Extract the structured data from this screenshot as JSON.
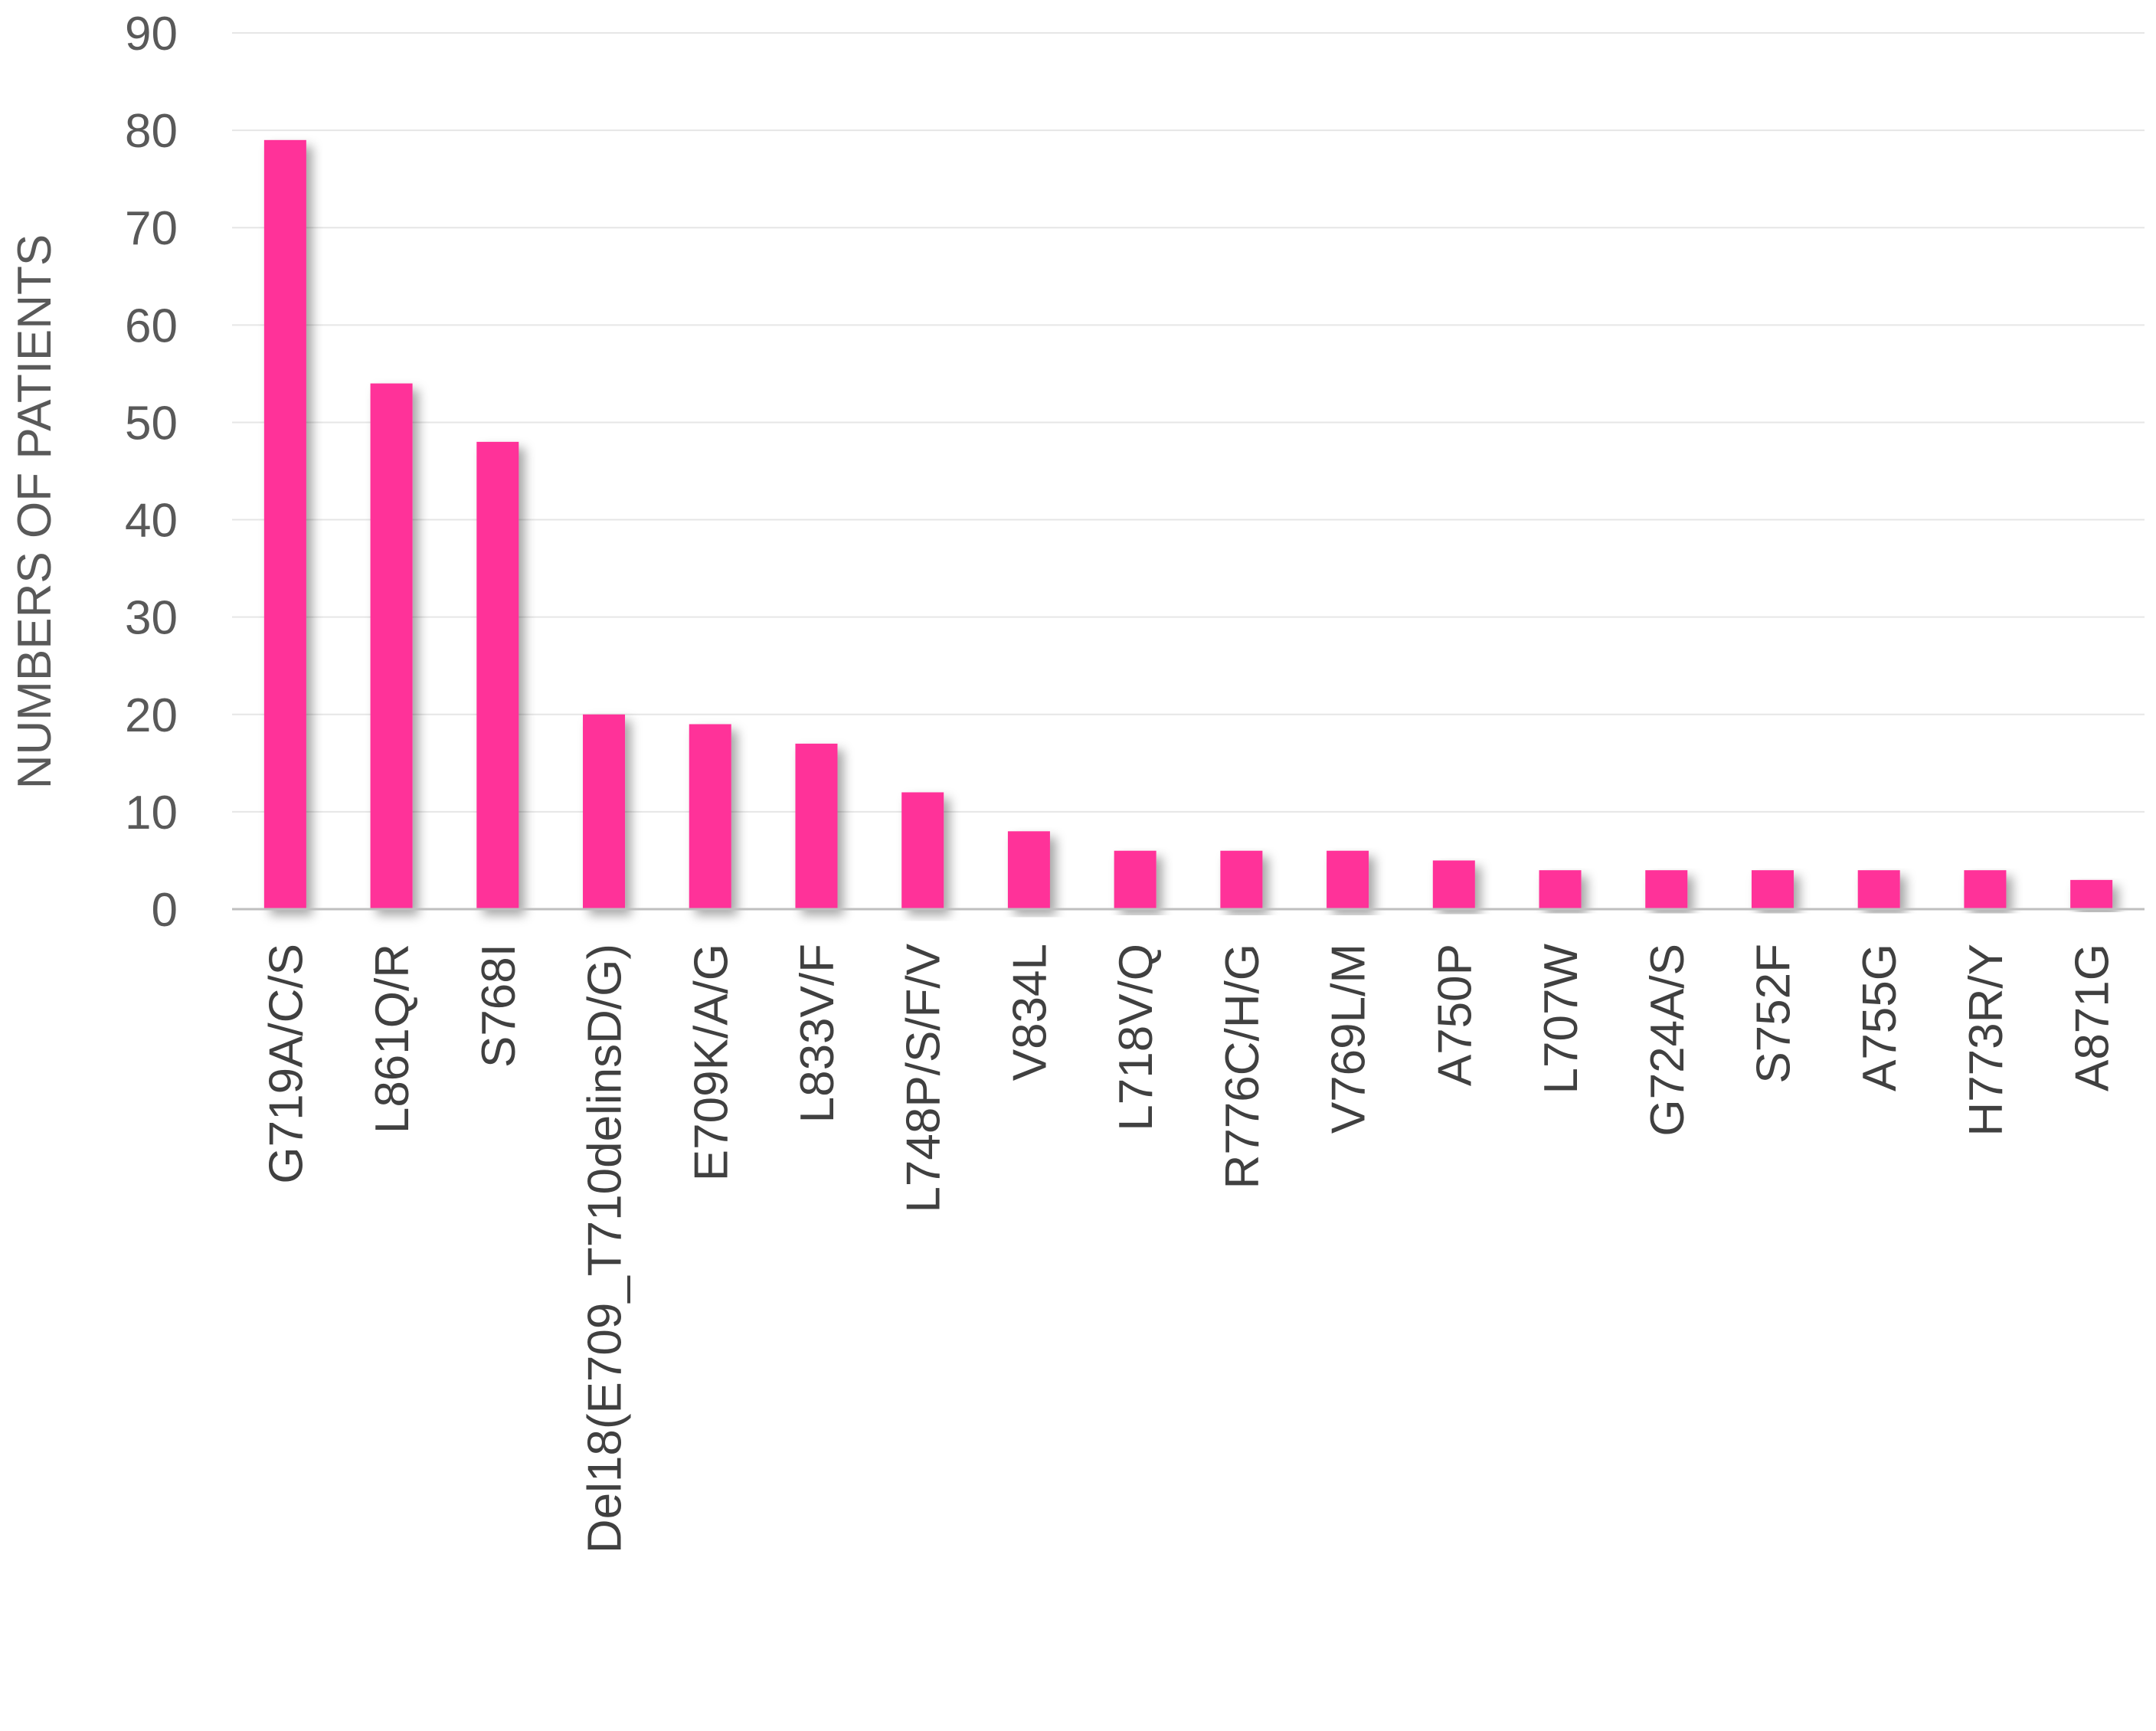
{
  "chart_data": {
    "type": "bar",
    "ylabel": "NUMBERS OF PATIENTS",
    "xlabel": "",
    "ylim": [
      0,
      90
    ],
    "yticks": [
      0,
      10,
      20,
      30,
      40,
      50,
      60,
      70,
      80,
      90
    ],
    "grid": true,
    "legend": "none",
    "bar_color": "#ff3399",
    "grid_color": "#e6e6e6",
    "axis_color": "#bfbfbf",
    "categories": [
      "G719A/C/S",
      "L861Q/R",
      "S768I",
      "Del18(E709_T710delinsD/G)",
      "E709K/A/G",
      "L833V/F",
      "L748P/S/F/V",
      "V834L",
      "L718V/Q",
      "R776C/H/G",
      "V769L/M",
      "A750P",
      "L707W",
      "G724A/S",
      "S752F",
      "A755G",
      "H773R/Y",
      "A871G"
    ],
    "values": [
      79,
      54,
      48,
      20,
      19,
      17,
      12,
      8,
      6,
      6,
      6,
      5,
      4,
      4,
      4,
      4,
      4,
      3
    ]
  }
}
